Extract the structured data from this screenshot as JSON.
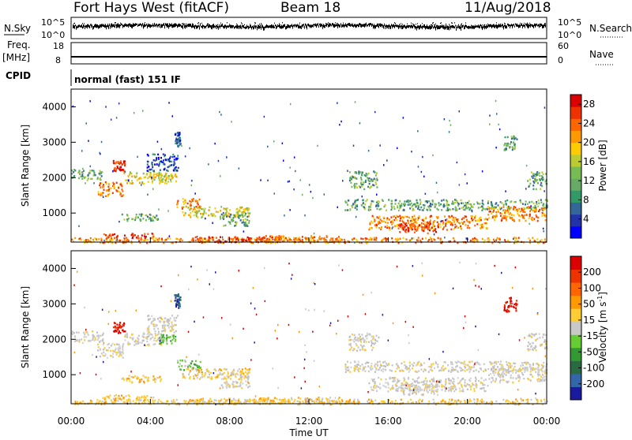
{
  "header": {
    "station": "Fort Hays West (fitACF)",
    "beam": "Beam 18",
    "date": "11/Aug/2018"
  },
  "panels": {
    "nsky_label": "N.Sky",
    "nsearch_label": "N.Search",
    "count_ticks": [
      "10^5",
      "10^0"
    ],
    "freq_label": "Freq.",
    "freq_unit": "[MHz]",
    "freq_ticks": [
      "18",
      "8"
    ],
    "nave_label": "Nave",
    "nave_ticks": [
      "60",
      "0"
    ],
    "cpid_label": "CPID",
    "cpid_text": "normal (fast) 151 IF"
  },
  "chart_data": [
    {
      "type": "heatmap",
      "title": "",
      "quantity": "Power",
      "ylabel": "Slant Range [km]",
      "xlabel": "Time UT",
      "x_ticks": [
        "00:00",
        "04:00",
        "08:00",
        "12:00",
        "16:00",
        "20:00",
        "00:00"
      ],
      "x_range_hours": [
        0,
        24
      ],
      "y_ticks": [
        "1000",
        "2000",
        "3000",
        "4000"
      ],
      "ylim": [
        180,
        4500
      ],
      "colorbar": {
        "label": "Power [dB]",
        "ticks": [
          "4",
          "8",
          "12",
          "16",
          "20",
          "24",
          "28"
        ],
        "range": [
          0,
          30
        ],
        "colors": [
          "#0000ff",
          "#2233aa",
          "#336699",
          "#339966",
          "#66aa66",
          "#77bb55",
          "#bbcc33",
          "#ffcc00",
          "#ff9900",
          "#ff6600",
          "#ee3300",
          "#dd0000"
        ]
      }
    },
    {
      "type": "heatmap",
      "title": "",
      "quantity": "Velocity",
      "ylabel": "Slant Range [km]",
      "xlabel": "Time UT",
      "x_ticks": [
        "00:00",
        "04:00",
        "08:00",
        "12:00",
        "16:00",
        "20:00",
        "00:00"
      ],
      "x_range_hours": [
        0,
        24
      ],
      "y_ticks": [
        "1000",
        "2000",
        "3000",
        "4000"
      ],
      "ylim": [
        180,
        4500
      ],
      "colorbar": {
        "label": "Velocity [m s",
        "label_exponent": "-1",
        "label_close": "]",
        "ticks": [
          "200",
          "100",
          "50",
          "15",
          "-15",
          "-50",
          "-100",
          "-200"
        ],
        "colors": [
          "#1a1aa0",
          "#3366aa",
          "#2a6a40",
          "#339933",
          "#66cc33",
          "#c8c8c8",
          "#ffcc33",
          "#ff9900",
          "#ff6600",
          "#ee3300",
          "#dd0000"
        ]
      }
    }
  ],
  "scatter_blobs": [
    {
      "t0": 0.0,
      "t1": 1.6,
      "r0": 1950,
      "r1": 2250,
      "p": "g",
      "v": "grey"
    },
    {
      "t0": 1.3,
      "t1": 2.6,
      "r0": 1500,
      "r1": 1900,
      "p": "o",
      "v": "grey"
    },
    {
      "t0": 2.1,
      "t1": 2.7,
      "r0": 2200,
      "r1": 2500,
      "p": "r",
      "v": "red"
    },
    {
      "t0": 2.6,
      "t1": 4.8,
      "r0": 1850,
      "r1": 2200,
      "p": "y",
      "v": "grey"
    },
    {
      "t0": 3.8,
      "t1": 5.4,
      "r0": 2200,
      "r1": 2700,
      "p": "b",
      "v": "grey"
    },
    {
      "t0": 4.4,
      "t1": 5.3,
      "r0": 1900,
      "r1": 2150,
      "p": "y",
      "v": "green"
    },
    {
      "t0": 5.2,
      "t1": 5.5,
      "r0": 2900,
      "r1": 3300,
      "p": "b",
      "v": "blue"
    },
    {
      "t0": 5.3,
      "t1": 6.5,
      "r0": 1150,
      "r1": 1450,
      "p": "o",
      "v": "green"
    },
    {
      "t0": 5.6,
      "t1": 9.0,
      "r0": 900,
      "r1": 1200,
      "p": "y",
      "v": "orange"
    },
    {
      "t0": 7.5,
      "t1": 9.0,
      "r0": 650,
      "r1": 1050,
      "p": "g",
      "v": "grey"
    },
    {
      "t0": 2.5,
      "t1": 4.5,
      "r0": 800,
      "r1": 1000,
      "p": "g",
      "v": "orange"
    },
    {
      "t0": 1.5,
      "t1": 4.2,
      "r0": 300,
      "r1": 450,
      "p": "r",
      "v": "orange"
    },
    {
      "t0": 0.0,
      "t1": 24.0,
      "r0": 180,
      "r1": 330,
      "p": "o",
      "v": "orange"
    },
    {
      "t0": 6.0,
      "t1": 11.0,
      "r0": 200,
      "r1": 350,
      "p": "r",
      "v": "orange"
    },
    {
      "t0": 14.0,
      "t1": 15.5,
      "r0": 1700,
      "r1": 2200,
      "p": "g",
      "v": "grey"
    },
    {
      "t0": 13.8,
      "t1": 24.0,
      "r0": 1100,
      "r1": 1400,
      "p": "g",
      "v": "grey"
    },
    {
      "t0": 15.0,
      "t1": 21.0,
      "r0": 550,
      "r1": 950,
      "p": "o",
      "v": "grey"
    },
    {
      "t0": 16.5,
      "t1": 18.5,
      "r0": 450,
      "r1": 750,
      "p": "r",
      "v": "grey"
    },
    {
      "t0": 21.0,
      "t1": 24.0,
      "r0": 800,
      "r1": 1200,
      "p": "o",
      "v": "grey"
    },
    {
      "t0": 21.8,
      "t1": 22.5,
      "r0": 2800,
      "r1": 3200,
      "p": "g",
      "v": "red"
    },
    {
      "t0": 23.0,
      "t1": 24.0,
      "r0": 1700,
      "r1": 2200,
      "p": "g",
      "v": "grey"
    },
    {
      "t0": 9.5,
      "t1": 13.5,
      "r0": 200,
      "r1": 380,
      "p": "o",
      "v": "orange"
    }
  ]
}
